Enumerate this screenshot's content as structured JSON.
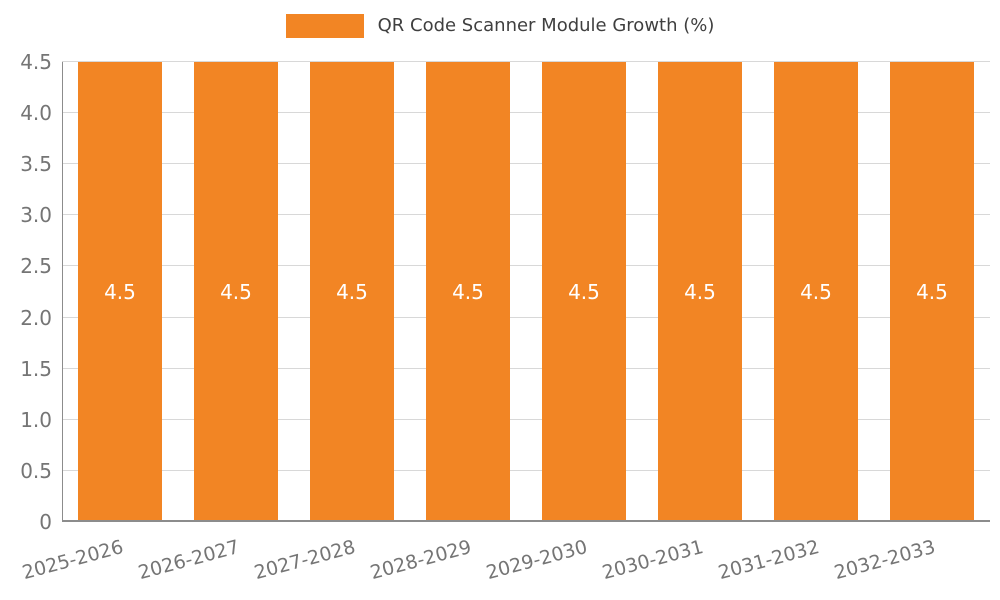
{
  "chart_data": {
    "type": "bar",
    "title": "QR Code Scanner Module Growth (%)",
    "categories": [
      "2025-2026",
      "2026-2027",
      "2027-2028",
      "2028-2029",
      "2029-2030",
      "2030-2031",
      "2031-2032",
      "2032-2033"
    ],
    "series": [
      {
        "name": "QR Code Scanner Module Growth (%)",
        "values": [
          4.5,
          4.5,
          4.5,
          4.5,
          4.5,
          4.5,
          4.5,
          4.5
        ]
      }
    ],
    "bar_value_labels": [
      "4.5",
      "4.5",
      "4.5",
      "4.5",
      "4.5",
      "4.5",
      "4.5",
      "4.5"
    ],
    "xlabel": "",
    "ylabel": "",
    "ylim": [
      0,
      4.5
    ],
    "yticks": [
      0,
      0.5,
      1.0,
      1.5,
      2.0,
      2.5,
      3.0,
      3.5,
      4.0,
      4.5
    ],
    "ytick_labels": [
      "0",
      "0.5",
      "1.0",
      "1.5",
      "2.0",
      "2.5",
      "3.0",
      "3.5",
      "4.0",
      "4.5"
    ],
    "grid": true,
    "legend_position": "top-center",
    "colors": {
      "bar": "#F28524",
      "bar_label": "#FFFFFF",
      "grid": "#D8D8D8",
      "axis_line": "#8C8C8C",
      "tick_text": "#757575",
      "title_text": "#3F3F3F"
    }
  }
}
